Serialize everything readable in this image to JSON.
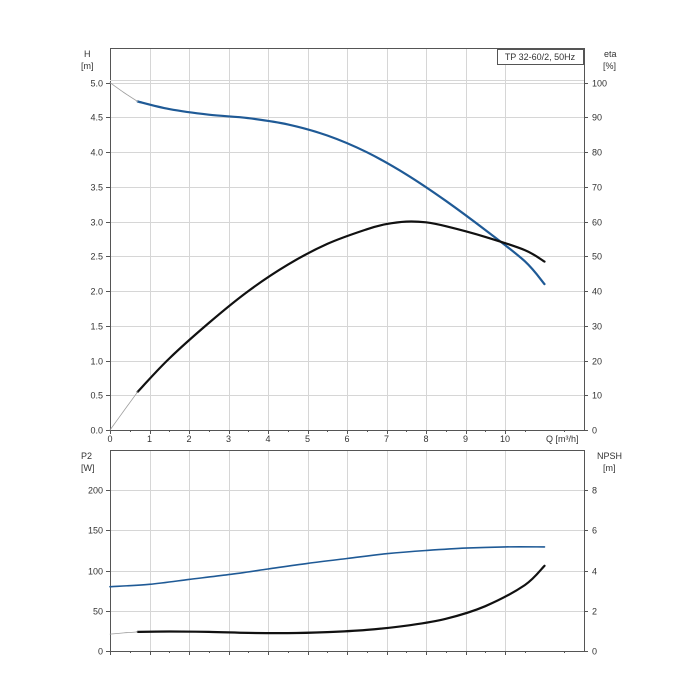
{
  "chart_data": [
    {
      "type": "line",
      "title": "TP 32-60/2, 50Hz",
      "xlabel": "Q [m³/h]",
      "ylabel": [
        "H",
        "[m]"
      ],
      "ylabel_right": [
        "eta",
        "[%]"
      ],
      "xlim": [
        0,
        12
      ],
      "ylim": [
        0,
        5.5
      ],
      "ylim_right": [
        0,
        110
      ],
      "x_ticks": [
        "0",
        "1",
        "2",
        "3",
        "4",
        "5",
        "6",
        "7",
        "8",
        "9",
        "10"
      ],
      "y_ticks": [
        "0.0",
        "0.5",
        "1.0",
        "1.5",
        "2.0",
        "2.5",
        "3.0",
        "3.5",
        "4.0",
        "4.5",
        "5.0"
      ],
      "y_ticks_right": [
        "0",
        "10",
        "20",
        "30",
        "40",
        "50",
        "60",
        "70",
        "80",
        "90",
        "100"
      ],
      "grid": true,
      "series": [
        {
          "axis": "left",
          "color": "#1f5a96",
          "x": [
            0.7,
            1.5,
            2.5,
            3.5,
            4.5,
            5.5,
            6.5,
            7.5,
            8.5,
            9.5,
            10.5,
            11.0
          ],
          "y": [
            4.73,
            4.62,
            4.54,
            4.49,
            4.4,
            4.24,
            4.0,
            3.68,
            3.3,
            2.88,
            2.43,
            2.1
          ]
        },
        {
          "axis": "left",
          "color": "#9e9e9e",
          "x": [
            0.0,
            0.35,
            0.7
          ],
          "y": [
            5.0,
            4.86,
            4.73
          ]
        },
        {
          "axis": "right",
          "color": "#111111",
          "x": [
            0.7,
            1.5,
            2.5,
            3.5,
            4.5,
            5.5,
            6.5,
            7.0,
            7.5,
            8.0,
            8.5,
            9.5,
            10.5,
            11.0
          ],
          "y": [
            11.0,
            20.6,
            30.8,
            40.0,
            47.6,
            53.6,
            57.8,
            59.3,
            60.0,
            59.8,
            58.7,
            55.6,
            51.8,
            48.5
          ]
        },
        {
          "axis": "right",
          "color": "#9e9e9e",
          "x": [
            0.0,
            0.35,
            0.7
          ],
          "y": [
            0.0,
            5.5,
            11.0
          ]
        }
      ]
    },
    {
      "type": "line",
      "ylabel": [
        "P2",
        "[W]"
      ],
      "ylabel_right": [
        "NPSH",
        "[m]"
      ],
      "xlim": [
        0,
        12
      ],
      "ylim": [
        0,
        250
      ],
      "ylim_right": [
        0,
        10
      ],
      "y_ticks": [
        "0",
        "50",
        "100",
        "150",
        "200"
      ],
      "y_ticks_right": [
        "0",
        "2",
        "4",
        "6",
        "8"
      ],
      "grid": true,
      "series": [
        {
          "axis": "left",
          "color": "#1f5a96",
          "x": [
            0.0,
            1.0,
            2.0,
            3.0,
            4.0,
            5.0,
            6.0,
            7.0,
            8.0,
            9.0,
            10.0,
            11.0
          ],
          "y": [
            80,
            83,
            89,
            95,
            102,
            109,
            115,
            121,
            125,
            128,
            129.5,
            129.5
          ]
        },
        {
          "axis": "right",
          "color": "#111111",
          "x": [
            0.7,
            1.5,
            2.5,
            3.5,
            4.5,
            5.5,
            6.5,
            7.5,
            8.5,
            9.5,
            10.5,
            11.0
          ],
          "y": [
            0.95,
            0.97,
            0.95,
            0.9,
            0.89,
            0.94,
            1.05,
            1.26,
            1.6,
            2.23,
            3.28,
            4.24
          ]
        },
        {
          "axis": "right",
          "color": "#9e9e9e",
          "x": [
            0.0,
            0.35,
            0.7
          ],
          "y": [
            0.84,
            0.9,
            0.95
          ]
        }
      ]
    }
  ]
}
